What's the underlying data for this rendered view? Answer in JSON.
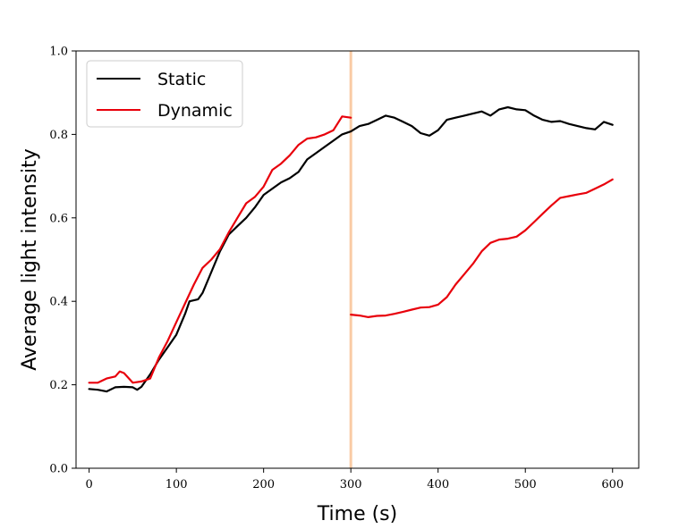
{
  "chart_data": {
    "type": "line",
    "title": "",
    "xlabel": "Time (s)",
    "ylabel": "Average light intensity",
    "xlim": [
      -15,
      630
    ],
    "ylim": [
      0.0,
      1.0
    ],
    "xticks": [
      0,
      100,
      200,
      300,
      400,
      500,
      600
    ],
    "xtick_labels": [
      "0",
      "100",
      "200",
      "300",
      "400",
      "500",
      "600"
    ],
    "yticks": [
      0.0,
      0.2,
      0.4,
      0.6,
      0.8,
      1.0
    ],
    "ytick_labels": [
      "0.0",
      "0.2",
      "0.4",
      "0.6",
      "0.8",
      "1.0"
    ],
    "grid": false,
    "legend_position": "top-left",
    "vline": {
      "x": 300,
      "color": "#f9cba5"
    },
    "series": [
      {
        "name": "Static",
        "color": "#000000",
        "segments": [
          [
            [
              0,
              0.19
            ],
            [
              10,
              0.188
            ],
            [
              20,
              0.184
            ],
            [
              30,
              0.194
            ],
            [
              40,
              0.195
            ],
            [
              50,
              0.194
            ],
            [
              55,
              0.188
            ],
            [
              60,
              0.195
            ],
            [
              70,
              0.225
            ],
            [
              80,
              0.26
            ],
            [
              90,
              0.29
            ],
            [
              100,
              0.32
            ],
            [
              110,
              0.37
            ],
            [
              115,
              0.4
            ],
            [
              125,
              0.405
            ],
            [
              130,
              0.42
            ],
            [
              140,
              0.47
            ],
            [
              150,
              0.52
            ],
            [
              160,
              0.56
            ],
            [
              170,
              0.58
            ],
            [
              180,
              0.6
            ],
            [
              190,
              0.625
            ],
            [
              200,
              0.655
            ],
            [
              210,
              0.67
            ],
            [
              220,
              0.685
            ],
            [
              230,
              0.695
            ],
            [
              240,
              0.71
            ],
            [
              250,
              0.74
            ],
            [
              260,
              0.755
            ],
            [
              270,
              0.77
            ],
            [
              280,
              0.785
            ],
            [
              290,
              0.8
            ],
            [
              300,
              0.807
            ],
            [
              310,
              0.82
            ],
            [
              320,
              0.825
            ],
            [
              330,
              0.835
            ],
            [
              340,
              0.845
            ],
            [
              350,
              0.84
            ],
            [
              360,
              0.83
            ],
            [
              370,
              0.82
            ],
            [
              380,
              0.803
            ],
            [
              390,
              0.797
            ],
            [
              400,
              0.81
            ],
            [
              410,
              0.835
            ],
            [
              420,
              0.84
            ],
            [
              430,
              0.845
            ],
            [
              440,
              0.85
            ],
            [
              450,
              0.855
            ],
            [
              460,
              0.845
            ],
            [
              470,
              0.86
            ],
            [
              480,
              0.865
            ],
            [
              490,
              0.86
            ],
            [
              500,
              0.858
            ],
            [
              510,
              0.845
            ],
            [
              520,
              0.835
            ],
            [
              530,
              0.83
            ],
            [
              540,
              0.832
            ],
            [
              550,
              0.825
            ],
            [
              560,
              0.82
            ],
            [
              570,
              0.815
            ],
            [
              580,
              0.812
            ],
            [
              590,
              0.83
            ],
            [
              600,
              0.823
            ]
          ]
        ]
      },
      {
        "name": "Dynamic",
        "color": "#e8000b",
        "segments": [
          [
            [
              0,
              0.205
            ],
            [
              10,
              0.205
            ],
            [
              20,
              0.215
            ],
            [
              30,
              0.22
            ],
            [
              35,
              0.232
            ],
            [
              40,
              0.228
            ],
            [
              50,
              0.205
            ],
            [
              60,
              0.208
            ],
            [
              70,
              0.215
            ],
            [
              80,
              0.265
            ],
            [
              90,
              0.305
            ],
            [
              100,
              0.35
            ],
            [
              110,
              0.395
            ],
            [
              120,
              0.44
            ],
            [
              130,
              0.48
            ],
            [
              140,
              0.5
            ],
            [
              150,
              0.525
            ],
            [
              160,
              0.565
            ],
            [
              170,
              0.6
            ],
            [
              180,
              0.635
            ],
            [
              190,
              0.65
            ],
            [
              200,
              0.675
            ],
            [
              210,
              0.715
            ],
            [
              220,
              0.73
            ],
            [
              230,
              0.75
            ],
            [
              240,
              0.775
            ],
            [
              250,
              0.79
            ],
            [
              260,
              0.793
            ],
            [
              270,
              0.8
            ],
            [
              280,
              0.81
            ],
            [
              290,
              0.843
            ],
            [
              300,
              0.84
            ]
          ],
          [
            [
              300,
              0.368
            ],
            [
              310,
              0.366
            ],
            [
              320,
              0.362
            ],
            [
              330,
              0.365
            ],
            [
              340,
              0.366
            ],
            [
              350,
              0.37
            ],
            [
              360,
              0.375
            ],
            [
              370,
              0.38
            ],
            [
              380,
              0.385
            ],
            [
              390,
              0.386
            ],
            [
              400,
              0.392
            ],
            [
              410,
              0.41
            ],
            [
              420,
              0.44
            ],
            [
              430,
              0.465
            ],
            [
              440,
              0.49
            ],
            [
              450,
              0.52
            ],
            [
              460,
              0.54
            ],
            [
              470,
              0.548
            ],
            [
              480,
              0.55
            ],
            [
              490,
              0.555
            ],
            [
              500,
              0.57
            ],
            [
              510,
              0.59
            ],
            [
              520,
              0.61
            ],
            [
              530,
              0.63
            ],
            [
              540,
              0.648
            ],
            [
              550,
              0.652
            ],
            [
              560,
              0.656
            ],
            [
              570,
              0.66
            ],
            [
              580,
              0.67
            ],
            [
              590,
              0.68
            ],
            [
              600,
              0.692
            ]
          ]
        ]
      }
    ]
  }
}
